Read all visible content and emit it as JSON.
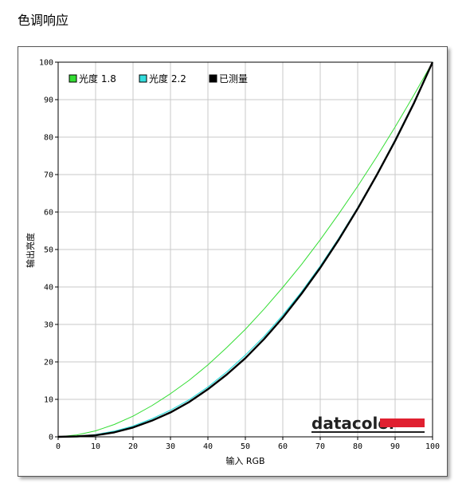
{
  "page": {
    "title": "色调响应"
  },
  "chart_data": {
    "type": "line",
    "xlabel": "输入 RGB",
    "ylabel": "输出亮度",
    "xlim": [
      0,
      100
    ],
    "ylim": [
      0,
      100
    ],
    "xticks": [
      0,
      10,
      20,
      30,
      40,
      50,
      60,
      70,
      80,
      90,
      100
    ],
    "yticks": [
      0,
      10,
      20,
      30,
      40,
      50,
      60,
      70,
      80,
      90,
      100
    ],
    "grid": true,
    "legend_position": "top-left",
    "series": [
      {
        "name": "光度 1.8",
        "color": "#33dd33",
        "x": [
          0,
          5,
          10,
          15,
          20,
          25,
          30,
          35,
          40,
          45,
          50,
          55,
          60,
          65,
          70,
          75,
          80,
          85,
          90,
          95,
          100
        ],
        "y": [
          0,
          0.5,
          1.6,
          3.3,
          5.5,
          8.3,
          11.5,
          15.1,
          19.2,
          23.8,
          28.7,
          34.1,
          39.9,
          46.0,
          52.6,
          59.6,
          66.9,
          74.6,
          82.7,
          91.2,
          100
        ]
      },
      {
        "name": "光度 2.2",
        "color": "#33dddd",
        "x": [
          0,
          5,
          10,
          15,
          20,
          25,
          30,
          35,
          40,
          45,
          50,
          55,
          60,
          65,
          70,
          75,
          80,
          85,
          90,
          95,
          100
        ],
        "y": [
          0,
          0.1,
          0.6,
          1.5,
          2.9,
          4.8,
          7.1,
          9.9,
          13.3,
          17.3,
          21.8,
          26.8,
          32.5,
          38.7,
          45.6,
          53.1,
          61.2,
          69.9,
          79.3,
          89.3,
          100
        ]
      },
      {
        "name": "已测量",
        "color": "#000000",
        "x": [
          0,
          5,
          10,
          15,
          20,
          25,
          30,
          35,
          40,
          45,
          50,
          55,
          60,
          65,
          70,
          75,
          80,
          85,
          90,
          95,
          100
        ],
        "y": [
          0,
          0.1,
          0.4,
          1.2,
          2.5,
          4.3,
          6.5,
          9.3,
          12.7,
          16.6,
          21.0,
          26.1,
          31.8,
          38.2,
          45.1,
          52.7,
          60.9,
          69.7,
          79.0,
          89.0,
          100
        ]
      }
    ]
  },
  "brand": {
    "name": "datacolor",
    "bar_color": "#e02030"
  }
}
